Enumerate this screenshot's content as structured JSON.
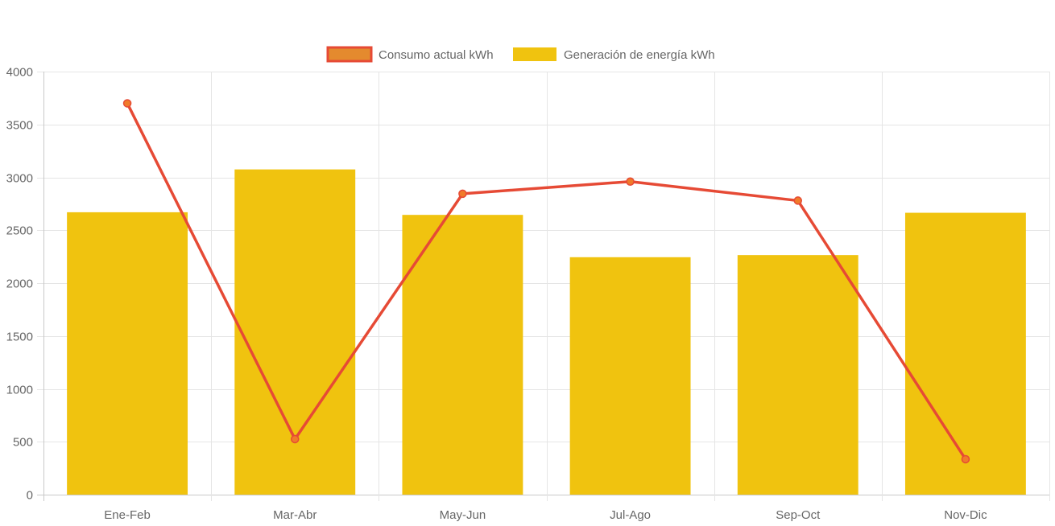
{
  "chart_data": {
    "type": "bar",
    "categories": [
      "Ene-Feb",
      "Mar-Abr",
      "May-Jun",
      "Jul-Ago",
      "Sep-Oct",
      "Nov-Dic"
    ],
    "series": [
      {
        "name": "Consumo actual kWh",
        "type": "line",
        "values": [
          3700,
          525,
          2845,
          2960,
          2780,
          335
        ],
        "color": "#e64a35",
        "point_color": "#f07b2a"
      },
      {
        "name": "Generación de energía kWh",
        "type": "bar",
        "values": [
          2670,
          3075,
          2645,
          2245,
          2265,
          2665
        ],
        "color": "#f0c30f"
      }
    ],
    "title": "",
    "xlabel": "",
    "ylabel": "",
    "ylim": [
      0,
      4000
    ],
    "yticks": [
      "0",
      "500",
      "1000",
      "1500",
      "2000",
      "2500",
      "3000",
      "3500",
      "4000"
    ],
    "grid": true,
    "legend_position": "top-center"
  }
}
